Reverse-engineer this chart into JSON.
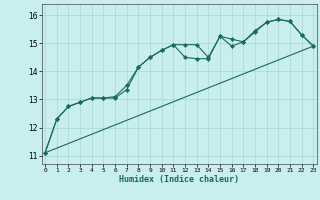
{
  "xlabel": "Humidex (Indice chaleur)",
  "bg_color": "#c8eef0",
  "line_color": "#1a6b5a",
  "grid_color": "#a8d8d0",
  "x_ticks": [
    0,
    1,
    2,
    3,
    4,
    5,
    6,
    7,
    8,
    9,
    10,
    11,
    12,
    13,
    14,
    15,
    16,
    17,
    18,
    19,
    20,
    21,
    22,
    23
  ],
  "y_ticks": [
    11,
    12,
    13,
    14,
    15,
    16
  ],
  "ylim": [
    10.7,
    16.4
  ],
  "xlim": [
    -0.3,
    23.3
  ],
  "line1_x": [
    0,
    1,
    2,
    3,
    4,
    5,
    6,
    7,
    8,
    9,
    10,
    11,
    12,
    13,
    14,
    15,
    16,
    17,
    18,
    19,
    20,
    21,
    22,
    23
  ],
  "line1_y": [
    11.1,
    12.3,
    12.75,
    12.9,
    13.05,
    13.05,
    13.05,
    13.35,
    14.15,
    14.5,
    14.75,
    14.95,
    14.95,
    14.95,
    14.5,
    15.25,
    15.15,
    15.05,
    15.45,
    15.75,
    15.85,
    15.78,
    15.3,
    14.9
  ],
  "line2_x": [
    0,
    1,
    2,
    3,
    4,
    5,
    6,
    7,
    8,
    9,
    10,
    11,
    12,
    13,
    14,
    15,
    16,
    17,
    18,
    19,
    20,
    21,
    22,
    23
  ],
  "line2_y": [
    11.1,
    12.3,
    12.75,
    12.9,
    13.05,
    13.05,
    13.1,
    13.5,
    14.15,
    14.5,
    14.75,
    14.95,
    14.5,
    14.45,
    14.45,
    15.25,
    14.9,
    15.05,
    15.4,
    15.75,
    15.85,
    15.78,
    15.3,
    14.9
  ],
  "line3_x": [
    0,
    23
  ],
  "line3_y": [
    11.1,
    14.9
  ]
}
